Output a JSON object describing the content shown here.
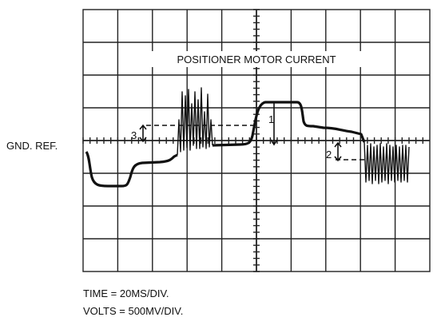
{
  "title": "POSITIONER MOTOR CURRENT",
  "ground_label": "GND. REF.",
  "markers": [
    "1",
    "2",
    "3"
  ],
  "footer": [
    "TIME = 20MS/DIV.",
    "VOLTS = 500MV/DIV."
  ]
}
